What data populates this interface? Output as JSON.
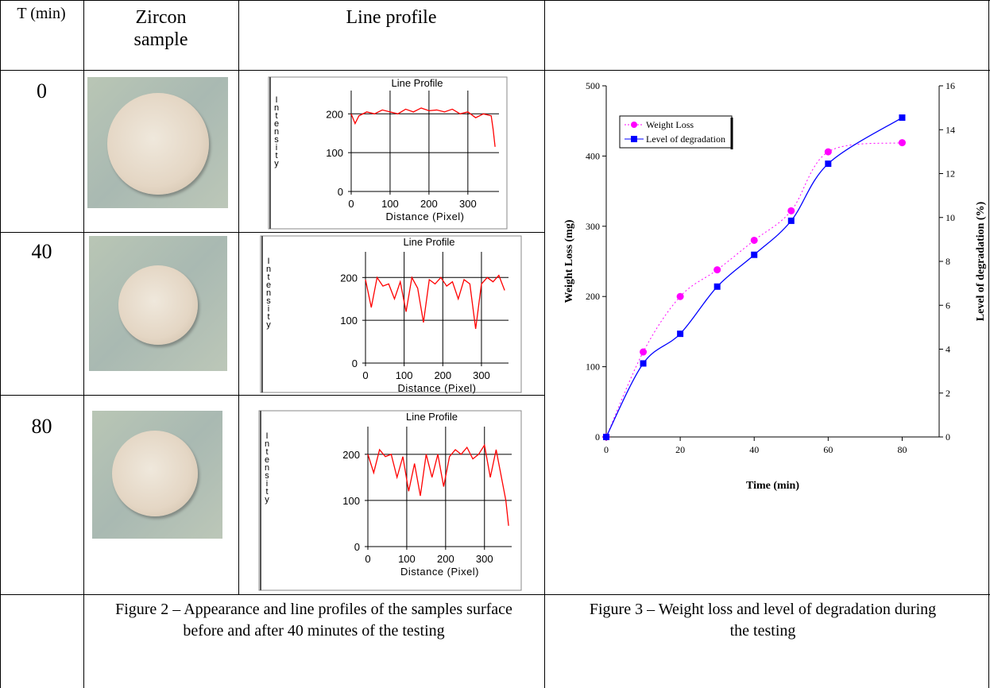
{
  "table": {
    "header": [
      "T (min)",
      "Zircon sample",
      "Line profile"
    ],
    "rows": [
      0,
      40,
      80
    ],
    "captions": [
      "Figure 2 – Appearance and line profiles of the samples surface before and after 40 minutes of the testing",
      "Figure 3 – Weight loss and level of degradation during the testing"
    ]
  },
  "chart_data": [
    {
      "type": "line",
      "title": "Line Profile",
      "xlabel": "Distance (Pixel)",
      "ylabel": "Intensity",
      "color": "#ff0000",
      "grid": true,
      "xlim": [
        0,
        380
      ],
      "ylim": [
        0,
        260
      ],
      "xticks": [
        0,
        100,
        200,
        300
      ],
      "yticks": [
        0,
        100,
        200
      ],
      "x": [
        0,
        10,
        20,
        40,
        60,
        80,
        100,
        120,
        140,
        160,
        180,
        200,
        220,
        240,
        260,
        280,
        300,
        320,
        340,
        360,
        365,
        370
      ],
      "values": [
        200,
        175,
        195,
        205,
        200,
        210,
        205,
        200,
        212,
        205,
        215,
        208,
        210,
        205,
        212,
        200,
        205,
        190,
        200,
        195,
        160,
        115
      ]
    },
    {
      "type": "line",
      "title": "Line Profile",
      "xlabel": "Distance (Pixel)",
      "ylabel": "Intensity",
      "color": "#ff0000",
      "grid": true,
      "xlim": [
        0,
        370
      ],
      "ylim": [
        0,
        260
      ],
      "xticks": [
        0,
        100,
        200,
        300
      ],
      "yticks": [
        0,
        100,
        200
      ],
      "x": [
        0,
        15,
        30,
        45,
        60,
        75,
        90,
        105,
        120,
        135,
        150,
        165,
        180,
        195,
        210,
        225,
        240,
        255,
        270,
        285,
        300,
        315,
        330,
        345,
        360
      ],
      "values": [
        195,
        130,
        200,
        180,
        185,
        150,
        190,
        120,
        200,
        175,
        95,
        195,
        185,
        200,
        180,
        190,
        150,
        195,
        185,
        80,
        185,
        200,
        190,
        205,
        170
      ]
    },
    {
      "type": "line",
      "title": "Line Profile",
      "xlabel": "Distance (Pixel)",
      "ylabel": "Intensity",
      "color": "#ff0000",
      "grid": true,
      "xlim": [
        0,
        370
      ],
      "ylim": [
        0,
        260
      ],
      "xticks": [
        0,
        100,
        200,
        300
      ],
      "yticks": [
        0,
        100,
        200
      ],
      "x": [
        0,
        15,
        30,
        45,
        60,
        75,
        90,
        105,
        120,
        135,
        150,
        165,
        180,
        195,
        210,
        225,
        240,
        255,
        270,
        285,
        300,
        315,
        330,
        355,
        362
      ],
      "values": [
        200,
        160,
        210,
        195,
        200,
        150,
        195,
        120,
        180,
        110,
        200,
        150,
        200,
        130,
        195,
        210,
        200,
        215,
        190,
        200,
        220,
        150,
        210,
        100,
        45
      ]
    },
    {
      "type": "line",
      "xlabel": "Time (min)",
      "ylabel": "Weight Loss (mg)",
      "y2label": "Level of degradation (%)",
      "x": [
        0,
        10,
        20,
        30,
        40,
        50,
        60,
        80
      ],
      "xlim": [
        0,
        90
      ],
      "xticks": [
        0,
        20,
        40,
        60,
        80
      ],
      "ylim": [
        0,
        500
      ],
      "yticks": [
        0,
        100,
        200,
        300,
        400,
        500
      ],
      "y2lim": [
        0,
        16
      ],
      "y2ticks": [
        0,
        2,
        4,
        6,
        8,
        10,
        12,
        14,
        16
      ],
      "legend": "upper left",
      "series": [
        {
          "name": "Weight Loss",
          "color": "#ff00ff",
          "marker": "circle",
          "line_style": "dotted",
          "values": [
            0,
            121,
            200,
            238,
            280,
            322,
            406,
            419
          ]
        },
        {
          "name": "Level of degradation",
          "color": "#0000ff",
          "marker": "square",
          "line_style": "solid",
          "axis": "y2",
          "values": [
            0,
            3.35,
            4.7,
            6.85,
            8.3,
            9.85,
            12.45,
            14.55
          ]
        }
      ]
    }
  ]
}
